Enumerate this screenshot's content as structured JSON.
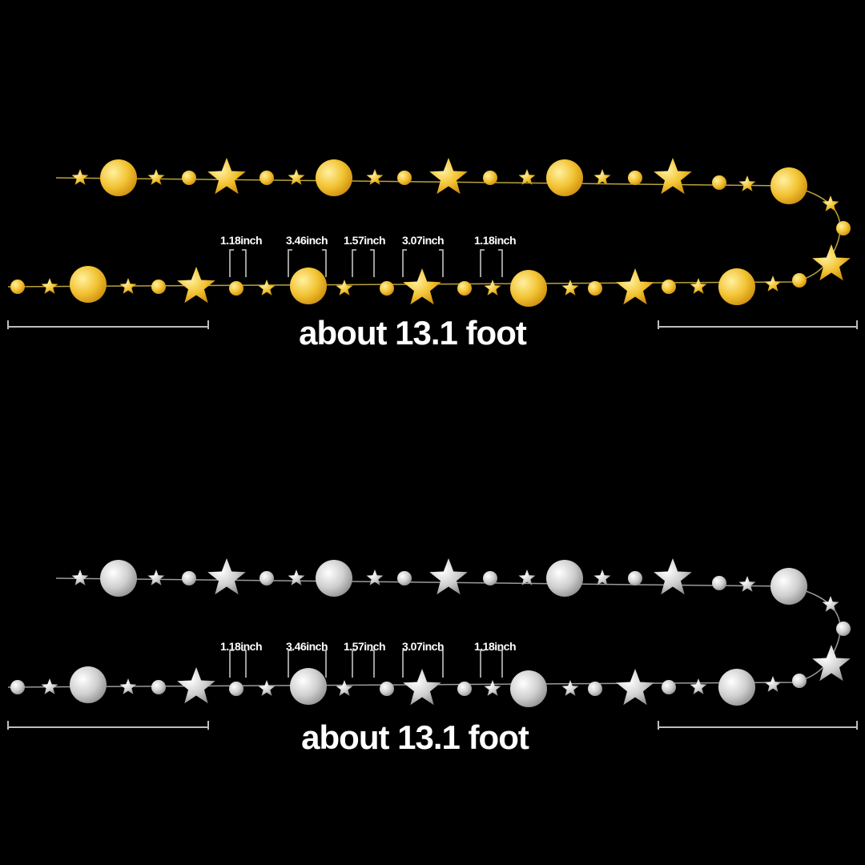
{
  "garlands": [
    {
      "variant": "gold",
      "colors": {
        "light": "#fff1a0",
        "mid": "#f2c232",
        "dark": "#c98a0c",
        "string": "#b9a23a"
      },
      "dimensions": [
        "1.18inch",
        "3.46inch",
        "1.57inch",
        "3.07inch",
        "1.18inch"
      ],
      "total_length": "about 13.1 foot"
    },
    {
      "variant": "silver",
      "colors": {
        "light": "#ffffff",
        "mid": "#cfcfcf",
        "dark": "#8a8a8a",
        "string": "#9a9a9a"
      },
      "dimensions": [
        "1.18inch",
        "3.46inch",
        "1.57inch",
        "3.07inch",
        "1.18inch"
      ],
      "total_length": "about 13.1 foot"
    }
  ]
}
